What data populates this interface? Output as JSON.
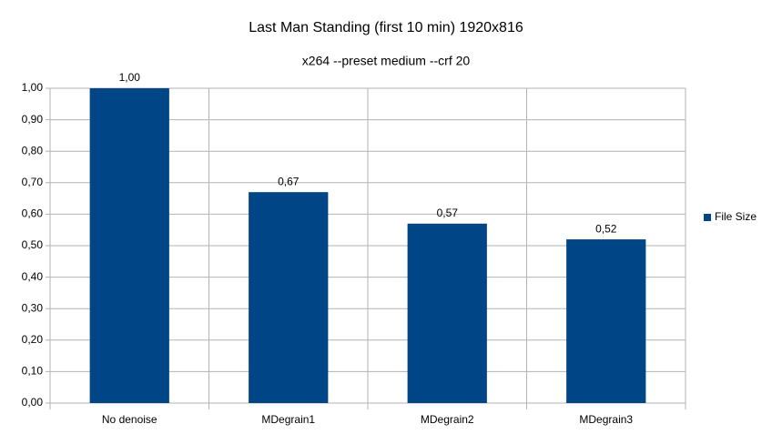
{
  "chart_data": {
    "type": "bar",
    "title": "Last Man Standing (first 10 min) 1920x816",
    "subtitle": "x264 --preset medium --crf 20",
    "categories": [
      "No denoise",
      "MDegrain1",
      "MDegrain2",
      "MDegrain3"
    ],
    "series": [
      {
        "name": "File Size",
        "color": "#004586",
        "values": [
          1.0,
          0.67,
          0.57,
          0.52
        ],
        "value_labels": [
          "1,00",
          "0,67",
          "0,57",
          "0,52"
        ]
      }
    ],
    "ylim": [
      0,
      1
    ],
    "yticks": [
      {
        "value": 0,
        "label": "0,00"
      },
      {
        "value": 0.1,
        "label": "0,10"
      },
      {
        "value": 0.2,
        "label": "0,20"
      },
      {
        "value": 0.3,
        "label": "0,30"
      },
      {
        "value": 0.4,
        "label": "0,40"
      },
      {
        "value": 0.5,
        "label": "0,50"
      },
      {
        "value": 0.6,
        "label": "0,60"
      },
      {
        "value": 0.7,
        "label": "0,70"
      },
      {
        "value": 0.8,
        "label": "0,80"
      },
      {
        "value": 0.9,
        "label": "0,90"
      },
      {
        "value": 1,
        "label": "1,00"
      }
    ],
    "grid": true,
    "legend": "right"
  }
}
